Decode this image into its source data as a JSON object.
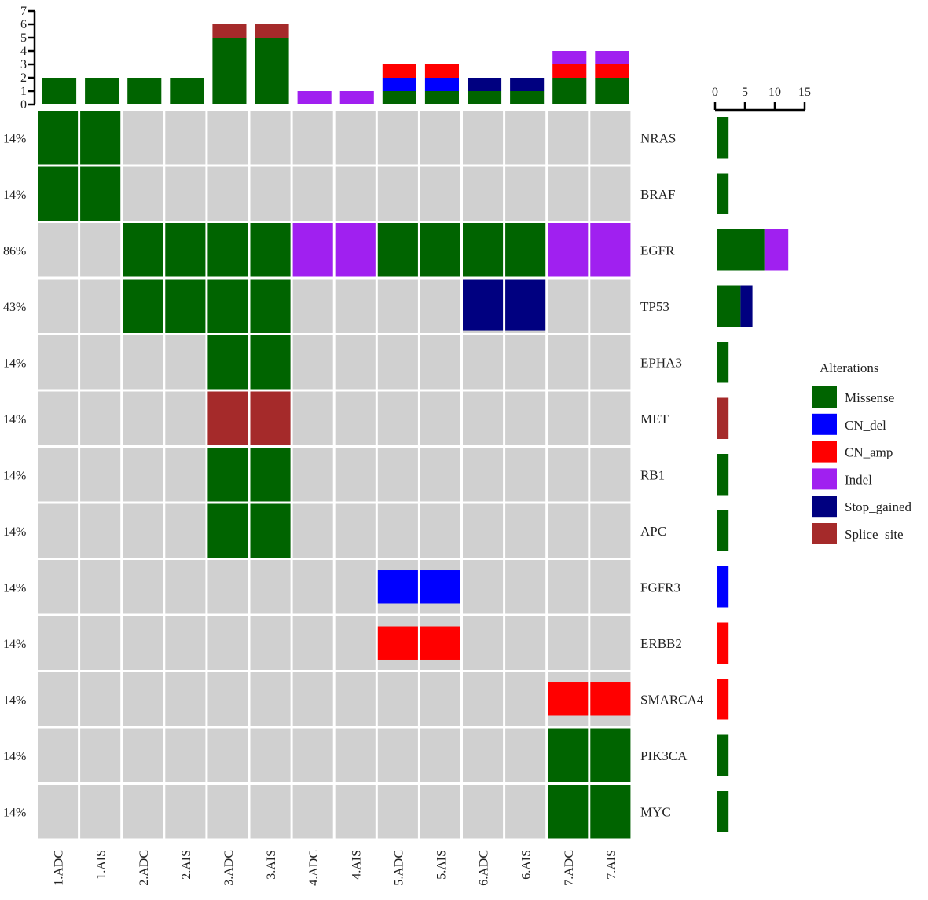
{
  "chart_data": {
    "type": "heatmap",
    "legend": {
      "title": "Alterations",
      "placement": "right",
      "items": [
        {
          "name": "Missense",
          "color": "#006400"
        },
        {
          "name": "CN_del",
          "color": "#0000FF"
        },
        {
          "name": "CN_amp",
          "color": "#FF0000"
        },
        {
          "name": "Indel",
          "color": "#A020F0"
        },
        {
          "name": "Stop_gained",
          "color": "#000080"
        },
        {
          "name": "Splice_site",
          "color": "#A52A2A"
        }
      ]
    },
    "background_color": "#D0D0D0",
    "samples": [
      "1.ADC",
      "1.AIS",
      "2.ADC",
      "2.AIS",
      "3.ADC",
      "3.AIS",
      "4.ADC",
      "4.AIS",
      "5.ADC",
      "5.AIS",
      "6.ADC",
      "6.AIS",
      "7.ADC",
      "7.AIS"
    ],
    "genes": [
      {
        "name": "NRAS",
        "percent": "14%"
      },
      {
        "name": "BRAF",
        "percent": "14%"
      },
      {
        "name": "EGFR",
        "percent": "86%"
      },
      {
        "name": "TP53",
        "percent": "43%"
      },
      {
        "name": "EPHA3",
        "percent": "14%"
      },
      {
        "name": "MET",
        "percent": "14%"
      },
      {
        "name": "RB1",
        "percent": "14%"
      },
      {
        "name": "APC",
        "percent": "14%"
      },
      {
        "name": "FGFR3",
        "percent": "14%"
      },
      {
        "name": "ERBB2",
        "percent": "14%"
      },
      {
        "name": "SMARCA4",
        "percent": "14%"
      },
      {
        "name": "PIK3CA",
        "percent": "14%"
      },
      {
        "name": "MYC",
        "percent": "14%"
      }
    ],
    "matrix": [
      [
        "Missense",
        "Missense",
        "",
        "",
        "",
        "",
        "",
        "",
        "",
        "",
        "",
        "",
        "",
        ""
      ],
      [
        "Missense",
        "Missense",
        "",
        "",
        "",
        "",
        "",
        "",
        "",
        "",
        "",
        "",
        "",
        ""
      ],
      [
        "",
        "",
        "Missense",
        "Missense",
        "Missense",
        "Missense",
        "Indel",
        "Indel",
        "Missense",
        "Missense",
        "Missense",
        "Missense",
        "Indel",
        "Indel"
      ],
      [
        "",
        "",
        "Missense",
        "Missense",
        "Missense",
        "Missense",
        "",
        "",
        "",
        "",
        "Stop_gained",
        "Stop_gained",
        "",
        ""
      ],
      [
        "",
        "",
        "",
        "",
        "Missense",
        "Missense",
        "",
        "",
        "",
        "",
        "",
        "",
        "",
        ""
      ],
      [
        "",
        "",
        "",
        "",
        "Splice_site",
        "Splice_site",
        "",
        "",
        "",
        "",
        "",
        "",
        "",
        ""
      ],
      [
        "",
        "",
        "",
        "",
        "Missense",
        "Missense",
        "",
        "",
        "",
        "",
        "",
        "",
        "",
        ""
      ],
      [
        "",
        "",
        "",
        "",
        "Missense",
        "Missense",
        "",
        "",
        "",
        "",
        "",
        "",
        "",
        ""
      ],
      [
        "",
        "",
        "",
        "",
        "",
        "",
        "",
        "",
        "CN_del",
        "CN_del",
        "",
        "",
        "",
        ""
      ],
      [
        "",
        "",
        "",
        "",
        "",
        "",
        "",
        "",
        "CN_amp",
        "CN_amp",
        "",
        "",
        "",
        ""
      ],
      [
        "",
        "",
        "",
        "",
        "",
        "",
        "",
        "",
        "",
        "",
        "",
        "",
        "CN_amp",
        "CN_amp"
      ],
      [
        "",
        "",
        "",
        "",
        "",
        "",
        "",
        "",
        "",
        "",
        "",
        "",
        "Missense",
        "Missense"
      ],
      [
        "",
        "",
        "",
        "",
        "",
        "",
        "",
        "",
        "",
        "",
        "",
        "",
        "Missense",
        "Missense"
      ]
    ],
    "top_bars": {
      "ylim": [
        0,
        7
      ],
      "ticks": [
        "0",
        "1",
        "2",
        "3",
        "4",
        "5",
        "6",
        "7"
      ]
    },
    "side_bars": {
      "xlim": [
        0,
        15
      ],
      "ticks": [
        "0",
        "5",
        "10",
        "15"
      ]
    }
  }
}
